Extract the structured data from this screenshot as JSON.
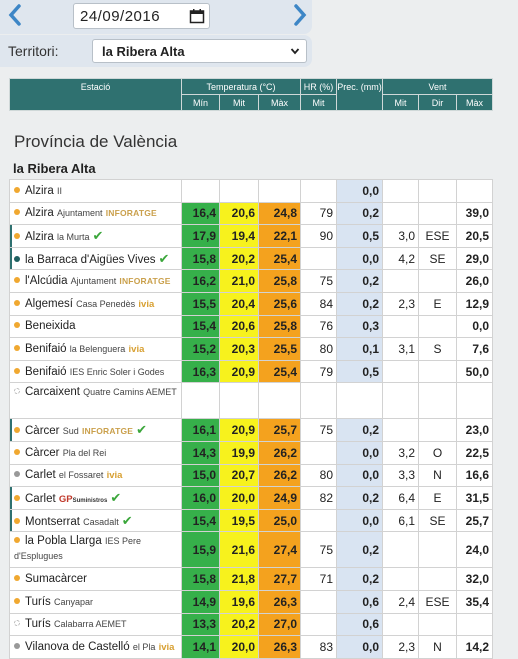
{
  "date_picker": {
    "value": "24/09/2016",
    "prev_icon": "chevron-left-icon",
    "next_icon": "chevron-right-icon",
    "calendar_icon": "calendar-icon"
  },
  "territory": {
    "label": "Territori:",
    "selected": "la Ribera Alta"
  },
  "table_header": {
    "station": "Estació",
    "temperature": "Temperatura (°C)",
    "humidity": "HR (%)",
    "precip": "Prec. (mm)",
    "wind": "Vent",
    "min": "Mín",
    "mit": "Mit",
    "max": "Màx",
    "hr_mit": "Mit",
    "wind_mit": "Mit",
    "wind_dir": "Dir",
    "wind_max": "Màx"
  },
  "province_title": "Província de València",
  "region_title": "la Ribera Alta",
  "colors": {
    "accent": "#2f7170",
    "dot_orange": "#f0a830",
    "dot_gray": "#999999",
    "dot_teal": "#1f6060",
    "min_green": "#36b04a",
    "mid_yellow": "#f7f21d",
    "max_orange": "#f4a21e",
    "precip_blue": "#d9e4f2"
  },
  "stations": [
    {
      "name": "Alzira",
      "sub": "II",
      "dot": "orange",
      "min": "",
      "mit": "",
      "max": "",
      "hr": "",
      "prec": "0,0",
      "wmit": "",
      "wdir": "",
      "wmax": ""
    },
    {
      "name": "Alzira",
      "sub": "Ajuntament",
      "brand": "INFORATGE",
      "dot": "orange",
      "min": "16,4",
      "mit": "20,6",
      "max": "24,8",
      "hr": "79",
      "prec": "0,2",
      "wmit": "",
      "wdir": "",
      "wmax": "39,0"
    },
    {
      "name": "Alzira",
      "sub": "la Murta",
      "tick": "✔",
      "dot": "orange",
      "min": "17,9",
      "mit": "19,4",
      "max": "22,1",
      "hr": "90",
      "prec": "0,5",
      "wmit": "3,0",
      "wdir": "ESE",
      "wmax": "20,5"
    },
    {
      "name": "la Barraca d'Aigües Vives",
      "tick": "✔",
      "dot": "teal",
      "min": "15,8",
      "mit": "20,2",
      "max": "25,4",
      "hr": "",
      "prec": "0,0",
      "wmit": "4,2",
      "wdir": "SE",
      "wmax": "29,0"
    },
    {
      "name": "l'Alcúdia",
      "sub": "Ajuntament",
      "brand": "INFORATGE",
      "dot": "orange",
      "min": "16,2",
      "mit": "21,0",
      "max": "25,8",
      "hr": "75",
      "prec": "0,2",
      "wmit": "",
      "wdir": "",
      "wmax": "26,0"
    },
    {
      "name": "Algemesí",
      "sub": "Casa Penedès",
      "ivia": "ivia",
      "dot": "orange",
      "min": "15,5",
      "mit": "20,4",
      "max": "25,6",
      "hr": "84",
      "prec": "0,2",
      "wmit": "2,3",
      "wdir": "E",
      "wmax": "12,9"
    },
    {
      "name": "Beneixida",
      "dot": "orange",
      "min": "15,4",
      "mit": "20,6",
      "max": "25,8",
      "hr": "76",
      "prec": "0,3",
      "wmit": "",
      "wdir": "",
      "wmax": "0,0"
    },
    {
      "name": "Benifaió",
      "sub": "la Belenguera",
      "ivia": "ivia",
      "dot": "orange",
      "min": "15,2",
      "mit": "20,3",
      "max": "25,5",
      "hr": "80",
      "prec": "0,1",
      "wmit": "3,1",
      "wdir": "S",
      "wmax": "7,6"
    },
    {
      "name": "Benifaió",
      "sub": "IES Enric Soler i Godes",
      "dot": "orange",
      "min": "16,3",
      "mit": "20,9",
      "max": "25,4",
      "hr": "79",
      "prec": "0,5",
      "wmit": "",
      "wdir": "",
      "wmax": "50,0"
    },
    {
      "name": "Carcaixent",
      "sub": "Quatre Camins AEMET",
      "dot": "empty",
      "double": true,
      "min": "",
      "mit": "",
      "max": "",
      "hr": "",
      "prec": "",
      "wmit": "",
      "wdir": "",
      "wmax": ""
    },
    {
      "name": "Càrcer",
      "sub": "Sud",
      "brand": "INFORATGE",
      "tick": "✔",
      "dot": "orange",
      "min": "16,1",
      "mit": "20,9",
      "max": "25,7",
      "hr": "75",
      "prec": "0,2",
      "wmit": "",
      "wdir": "",
      "wmax": "23,0"
    },
    {
      "name": "Càrcer",
      "sub": "Pla del Rei",
      "dot": "orange",
      "min": "14,3",
      "mit": "19,9",
      "max": "26,2",
      "hr": "",
      "prec": "0,0",
      "wmit": "3,2",
      "wdir": "O",
      "wmax": "22,5"
    },
    {
      "name": "Carlet",
      "sub": "el Fossaret",
      "ivia": "ivia",
      "dot": "gray",
      "min": "15,0",
      "mit": "20,7",
      "max": "26,2",
      "hr": "80",
      "prec": "0,0",
      "wmit": "3,3",
      "wdir": "N",
      "wmax": "16,6"
    },
    {
      "name": "Carlet",
      "gp": "GP",
      "gp_small": "Suministros",
      "tick": "✔",
      "dot": "orange",
      "min": "16,0",
      "mit": "20,0",
      "max": "24,9",
      "hr": "82",
      "prec": "0,2",
      "wmit": "6,4",
      "wdir": "E",
      "wmax": "31,5"
    },
    {
      "name": "Montserrat",
      "sub": "Casadalt",
      "tick": "✔",
      "dot": "orange",
      "min": "15,4",
      "mit": "19,5",
      "max": "25,0",
      "hr": "",
      "prec": "0,0",
      "wmit": "6,1",
      "wdir": "SE",
      "wmax": "25,7"
    },
    {
      "name": "la Pobla Llarga",
      "sub": "IES Pere d'Esplugues",
      "dot": "orange",
      "double": true,
      "min": "15,9",
      "mit": "21,6",
      "max": "27,4",
      "hr": "75",
      "prec": "0,2",
      "wmit": "",
      "wdir": "",
      "wmax": "24,0"
    },
    {
      "name": "Sumacàrcer",
      "dot": "orange",
      "min": "15,8",
      "mit": "21,8",
      "max": "27,7",
      "hr": "71",
      "prec": "0,2",
      "wmit": "",
      "wdir": "",
      "wmax": "32,0"
    },
    {
      "name": "Turís",
      "sub": "Canyapar",
      "dot": "orange",
      "min": "14,9",
      "mit": "19,6",
      "max": "26,3",
      "hr": "",
      "prec": "0,6",
      "wmit": "2,4",
      "wdir": "ESE",
      "wmax": "35,4"
    },
    {
      "name": "Turís",
      "sub": "Calabarra AEMET",
      "dot": "empty",
      "min": "13,3",
      "mit": "20,2",
      "max": "27,0",
      "hr": "",
      "prec": "0,6",
      "wmit": "",
      "wdir": "",
      "wmax": ""
    },
    {
      "name": "Vilanova de Castelló",
      "sub": "el Pla",
      "ivia": "ivia",
      "dot": "gray",
      "min": "14,1",
      "mit": "20,0",
      "max": "26,3",
      "hr": "83",
      "prec": "0,0",
      "wmit": "2,3",
      "wdir": "N",
      "wmax": "14,2"
    }
  ]
}
